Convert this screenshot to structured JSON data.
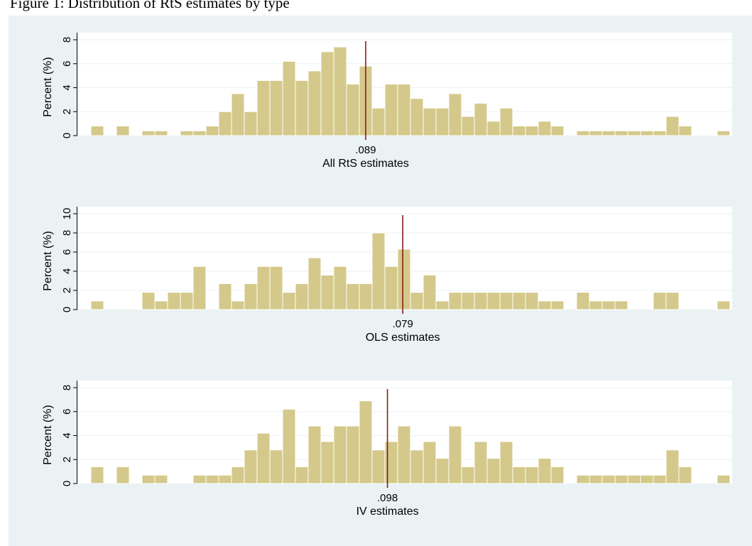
{
  "caption": "Figure 1: Distribution of RtS estimates by type",
  "colors": {
    "bar_fill": "#d4c98a",
    "bar_stroke": "#ffffff",
    "mean_line": "#8b1a1a",
    "plot_bg": "#ffffff",
    "graph_bg": "#eaf2f3",
    "grid": "#eaf2f3"
  },
  "chart_data": [
    {
      "type": "bar",
      "subtype": "histogram",
      "xlabel": "All RtS estimates",
      "ylabel": "Percent (%)",
      "ylim": [
        0,
        8
      ],
      "yticks": [
        0,
        2,
        4,
        6,
        8
      ],
      "grid": true,
      "marker_label": ".089",
      "values": [
        0.8,
        0,
        0.8,
        0,
        0.4,
        0.4,
        0,
        0.4,
        0.4,
        0.8,
        2,
        3.5,
        2,
        4.6,
        4.6,
        6.2,
        4.6,
        5.4,
        7,
        7.4,
        4.3,
        5.8,
        2.3,
        4.3,
        4.3,
        3.1,
        2.3,
        2.3,
        3.5,
        1.6,
        2.7,
        1.2,
        2.3,
        0.8,
        0.8,
        1.2,
        0.8,
        0,
        0.4,
        0.4,
        0.4,
        0.4,
        0.4,
        0.4,
        0.4,
        1.6,
        0.8,
        0,
        0,
        0.4
      ],
      "marker_bin_position": 21.5
    },
    {
      "type": "bar",
      "subtype": "histogram",
      "xlabel": "OLS estimates",
      "ylabel": "Percent (%)",
      "ylim": [
        0,
        10
      ],
      "yticks": [
        0,
        2,
        4,
        6,
        8,
        10
      ],
      "grid": true,
      "marker_label": ".079",
      "values": [
        0.9,
        0,
        0,
        0,
        1.8,
        0.9,
        1.8,
        1.8,
        4.5,
        0,
        2.7,
        0.9,
        2.7,
        4.5,
        4.5,
        1.8,
        2.7,
        5.4,
        3.6,
        4.5,
        2.7,
        2.7,
        8,
        4.5,
        6.3,
        1.8,
        3.6,
        0.9,
        1.8,
        1.8,
        1.8,
        1.8,
        1.8,
        1.8,
        1.8,
        0.9,
        0.9,
        0,
        1.8,
        0.9,
        0.9,
        0.9,
        0,
        0,
        1.8,
        1.8,
        0,
        0,
        0,
        0.9
      ],
      "marker_bin_position": 24.4
    },
    {
      "type": "bar",
      "subtype": "histogram",
      "xlabel": "IV estimates",
      "ylabel": "Percent (%)",
      "ylim": [
        0,
        8
      ],
      "yticks": [
        0,
        2,
        4,
        6,
        8
      ],
      "grid": true,
      "marker_label": ".098",
      "values": [
        1.4,
        0,
        1.4,
        0,
        0.7,
        0.7,
        0,
        0,
        0.7,
        0.7,
        0.7,
        1.4,
        2.8,
        4.2,
        2.8,
        6.2,
        1.4,
        4.8,
        3.5,
        4.8,
        4.8,
        6.9,
        2.8,
        3.5,
        4.8,
        2.8,
        3.5,
        2.1,
        4.8,
        1.4,
        3.5,
        2.1,
        3.5,
        1.4,
        1.4,
        2.1,
        1.4,
        0,
        0.7,
        0.7,
        0.7,
        0.7,
        0.7,
        0.7,
        0.7,
        2.8,
        1.4,
        0,
        0,
        0.7
      ],
      "marker_bin_position": 23.2
    }
  ]
}
